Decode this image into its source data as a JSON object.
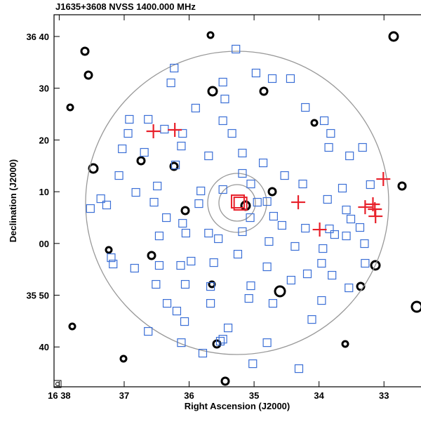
{
  "chart_data": {
    "type": "scatter",
    "title": "J1635+3608 NVSS  1400.000 MHz",
    "x_label": "Right Ascension (J2000)",
    "y_label": "Declination (J2000)",
    "xlim": [
      38.08,
      32.43
    ],
    "ylim": [
      32.3,
      104.2
    ],
    "xticks": [
      {
        "value": 38,
        "label": "16 38"
      },
      37,
      36,
      35,
      34,
      33
    ],
    "yticks": [
      {
        "value": 100,
        "label": "36 40"
      },
      {
        "value": 90,
        "label": "30"
      },
      {
        "value": 80,
        "label": "20"
      },
      {
        "value": 70,
        "label": "10"
      },
      {
        "value": 60,
        "label": "00"
      },
      {
        "value": 50,
        "label": "35 50"
      },
      40
    ],
    "series": [
      {
        "marker": "square",
        "color": "#3b6fd6",
        "x": [
          36.23,
          35.28,
          34.97,
          36.28,
          35.48,
          34.72,
          34.44,
          35.45,
          35.9,
          34.21,
          36.92,
          36.63,
          35.48,
          33.92,
          36.38,
          36.1,
          36.94,
          35.34,
          33.82,
          37.03,
          36.12,
          36.69,
          35.18,
          33.85,
          35.7,
          33.33,
          33.53,
          36.21,
          34.86,
          34.53,
          37.08,
          35.18,
          36.49,
          36.82,
          35.82,
          35.48,
          35.05,
          34.25,
          33.64,
          33.21,
          37.36,
          37.27,
          36.54,
          35.85,
          34.95,
          34.8,
          33.87,
          33.58,
          37.52,
          35.06,
          34.7,
          33.51,
          36.35,
          36.1,
          36.05,
          35.7,
          35.18,
          34.57,
          34.21,
          33.84,
          33.76,
          33.37,
          36.46,
          35.55,
          34.77,
          34.37,
          33.94,
          33.58,
          33.3,
          37.2,
          36.84,
          36.46,
          35.97,
          35.62,
          35.25,
          36.13,
          33.96,
          33.29,
          34.8,
          34.18,
          36.51,
          37.17,
          36.06,
          35.67,
          35.05,
          34.43,
          33.8,
          33.54,
          36.34,
          35.67,
          35.08,
          33.96,
          36.19,
          34.71,
          36.07,
          35.4,
          34.11,
          36.63,
          36.12,
          34.8,
          35.52,
          35.79,
          35.48,
          34.31,
          35.02
        ],
        "values": [
          93.89,
          97.56,
          92.94,
          91.04,
          91.18,
          91.86,
          91.86,
          87.92,
          86.16,
          86.29,
          83.99,
          83.99,
          83.72,
          83.72,
          82.09,
          81.27,
          81.27,
          81.27,
          81.27,
          78.29,
          78.83,
          77.61,
          77.47,
          78.56,
          76.93,
          78.56,
          76.93,
          75.17,
          75.57,
          73.13,
          73.13,
          73.54,
          71.1,
          69.87,
          70.15,
          70.42,
          71.5,
          71.5,
          70.69,
          71.37,
          68.65,
          67.43,
          67.97,
          67.7,
          67.97,
          68.11,
          68.52,
          66.48,
          66.75,
          64.99,
          65.26,
          64.72,
          64.99,
          63.9,
          62.0,
          62.0,
          62.28,
          63.5,
          62.95,
          62.82,
          61.73,
          63.09,
          61.46,
          60.92,
          60.38,
          59.43,
          59.02,
          61.46,
          59.97,
          57.25,
          55.22,
          55.76,
          56.58,
          56.3,
          57.93,
          55.76,
          56.17,
          56.17,
          55.49,
          54.13,
          52.1,
          56.03,
          52.1,
          51.69,
          51.83,
          52.91,
          53.86,
          51.42,
          48.43,
          48.43,
          49.38,
          48.98,
          46.94,
          48.43,
          44.91,
          43.68,
          45.31,
          43.01,
          40.83,
          40.83,
          41.11,
          38.8,
          41.51,
          35.81,
          36.76
        ]
      },
      {
        "marker": "plus",
        "color": "#e8202a",
        "x": [
          36.55,
          36.22,
          33.01,
          34.32,
          33.99,
          33.29,
          33.14,
          33.13,
          33.17
        ],
        "values": [
          81.68,
          81.95,
          72.45,
          67.97,
          62.68,
          67.02,
          66.62,
          65.26,
          67.57
        ]
      },
      {
        "marker": "big-square",
        "color": "#e8202a",
        "x": [
          35.25,
          35.21
        ],
        "values": [
          68.11,
          67.7
        ]
      }
    ]
  }
}
